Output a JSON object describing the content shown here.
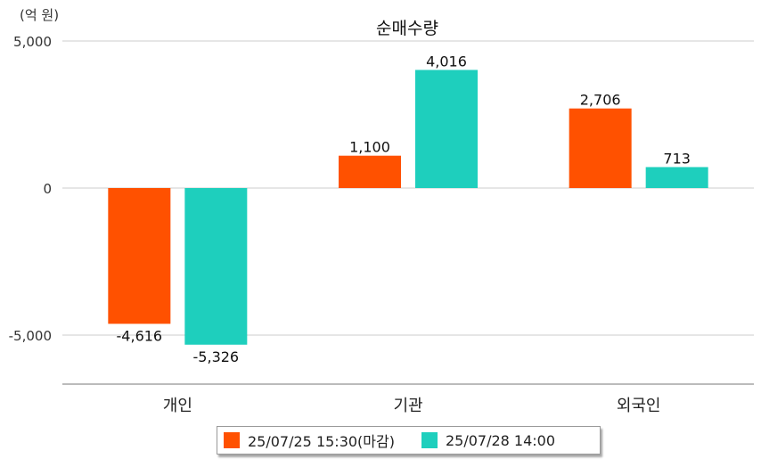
{
  "chart_data": {
    "type": "bar",
    "title": "순매수량",
    "unit_label": "(억 원)",
    "categories": [
      "개인",
      "기관",
      "외국인"
    ],
    "series": [
      {
        "name": "25/07/25 15:30(마감)",
        "color": "#ff5100",
        "values": [
          -4616,
          1100,
          2706
        ],
        "labels": [
          "-4,616",
          "1,100",
          "2,706"
        ]
      },
      {
        "name": "25/07/28 14:00",
        "color": "#1ecfbd",
        "values": [
          -5326,
          4016,
          713
        ],
        "labels": [
          "-5,326",
          "4,016",
          "713"
        ]
      }
    ],
    "y_ticks": [
      5000,
      0,
      -5000
    ],
    "y_tick_labels": [
      "5,000",
      "0",
      "-5,000"
    ],
    "ylim": [
      -6600,
      5000
    ],
    "grid": true,
    "legend_position": "bottom"
  }
}
